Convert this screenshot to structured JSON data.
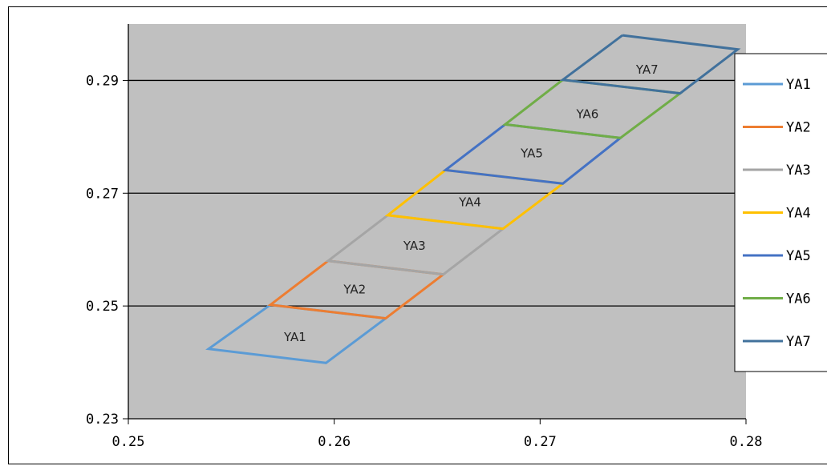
{
  "chart_data": {
    "type": "line",
    "title": "",
    "xlabel": "",
    "ylabel": "",
    "xlim": [
      0.25,
      0.28
    ],
    "ylim": [
      0.23,
      0.3
    ],
    "x_ticks": [
      "0.25",
      "0.26",
      "0.27",
      "0.28"
    ],
    "y_ticks": [
      "0.23",
      "0.25",
      "0.27",
      "0.29"
    ],
    "grid": "horizontal-major",
    "plot_background": "#c0c0c0",
    "legend_position": "right",
    "series": [
      {
        "name": "YA1",
        "color": "#5b9bd5",
        "label_at": [
          0.2581,
          0.2445
        ],
        "points": [
          [
            0.2569,
            0.2502
          ],
          [
            0.2625,
            0.2478
          ],
          [
            0.2596,
            0.2399
          ],
          [
            0.2539,
            0.2424
          ],
          [
            0.2569,
            0.2502
          ]
        ]
      },
      {
        "name": "YA2",
        "color": "#ed7d31",
        "label_at": [
          0.261,
          0.2529
        ],
        "points": [
          [
            0.2597,
            0.258
          ],
          [
            0.2653,
            0.2556
          ],
          [
            0.2625,
            0.2478
          ],
          [
            0.2569,
            0.2502
          ],
          [
            0.2597,
            0.258
          ]
        ]
      },
      {
        "name": "YA3",
        "color": "#a5a5a5",
        "label_at": [
          0.2639,
          0.2607
        ],
        "points": [
          [
            0.2626,
            0.2661
          ],
          [
            0.2682,
            0.2637
          ],
          [
            0.2653,
            0.2556
          ],
          [
            0.2597,
            0.258
          ],
          [
            0.2626,
            0.2661
          ]
        ]
      },
      {
        "name": "YA4",
        "color": "#ffc000",
        "label_at": [
          0.2666,
          0.2684
        ],
        "points": [
          [
            0.2654,
            0.2741
          ],
          [
            0.2711,
            0.2717
          ],
          [
            0.2682,
            0.2637
          ],
          [
            0.2626,
            0.2661
          ],
          [
            0.2654,
            0.2741
          ]
        ]
      },
      {
        "name": "YA5",
        "color": "#4472c4",
        "label_at": [
          0.2696,
          0.2771
        ],
        "points": [
          [
            0.2683,
            0.2822
          ],
          [
            0.2739,
            0.2798
          ],
          [
            0.2711,
            0.2717
          ],
          [
            0.2654,
            0.2741
          ],
          [
            0.2683,
            0.2822
          ]
        ]
      },
      {
        "name": "YA6",
        "color": "#70ad47",
        "label_at": [
          0.2723,
          0.284
        ],
        "points": [
          [
            0.2711,
            0.2901
          ],
          [
            0.2768,
            0.2877
          ],
          [
            0.2739,
            0.2798
          ],
          [
            0.2683,
            0.2822
          ],
          [
            0.2711,
            0.2901
          ]
        ]
      },
      {
        "name": "YA7",
        "color": "#41719c",
        "label_at": [
          0.2752,
          0.2919
        ],
        "points": [
          [
            0.274,
            0.298
          ],
          [
            0.2796,
            0.2955
          ],
          [
            0.2768,
            0.2877
          ],
          [
            0.2711,
            0.2901
          ],
          [
            0.274,
            0.298
          ]
        ]
      }
    ]
  }
}
